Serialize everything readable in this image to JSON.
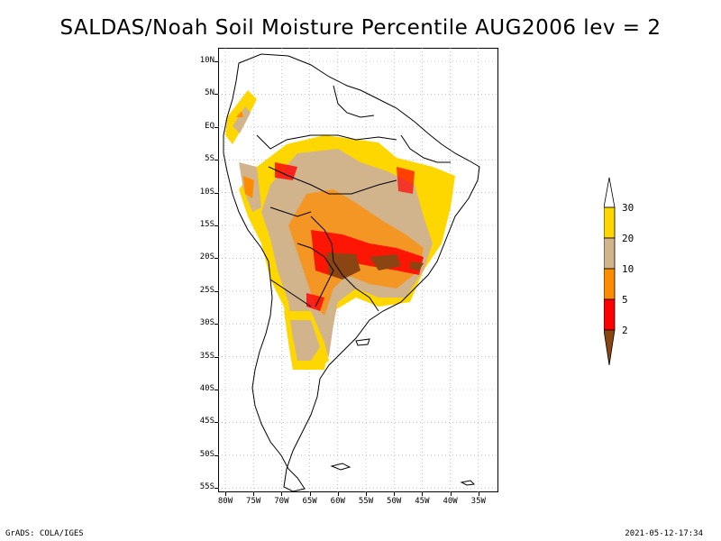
{
  "title": "SALDAS/Noah Soil Moisture Percentile AUG2006 lev = 2",
  "map": {
    "lat_labels": [
      "10N",
      "5N",
      "EQ",
      "5S",
      "10S",
      "15S",
      "20S",
      "25S",
      "30S",
      "35S",
      "40S",
      "45S",
      "50S",
      "55S"
    ],
    "lon_labels": [
      "80W",
      "75W",
      "70W",
      "65W",
      "60W",
      "55W",
      "50W",
      "45W",
      "40W",
      "35W"
    ],
    "extent": {
      "lon_min": -81,
      "lon_max": -32,
      "lat_min": -56,
      "lat_max": 12
    }
  },
  "legend": {
    "levels": [
      "30",
      "20",
      "10",
      "5",
      "2"
    ],
    "colors": {
      "above_30": "#ffffff",
      "20_30": "#ffd700",
      "10_20": "#d2b48c",
      "5_10": "#ff8c00",
      "2_5": "#ff0000",
      "below_2": "#8b4513"
    }
  },
  "footer": {
    "left": "GrADS: COLA/IGES",
    "right": "2021-05-12-17:34"
  }
}
